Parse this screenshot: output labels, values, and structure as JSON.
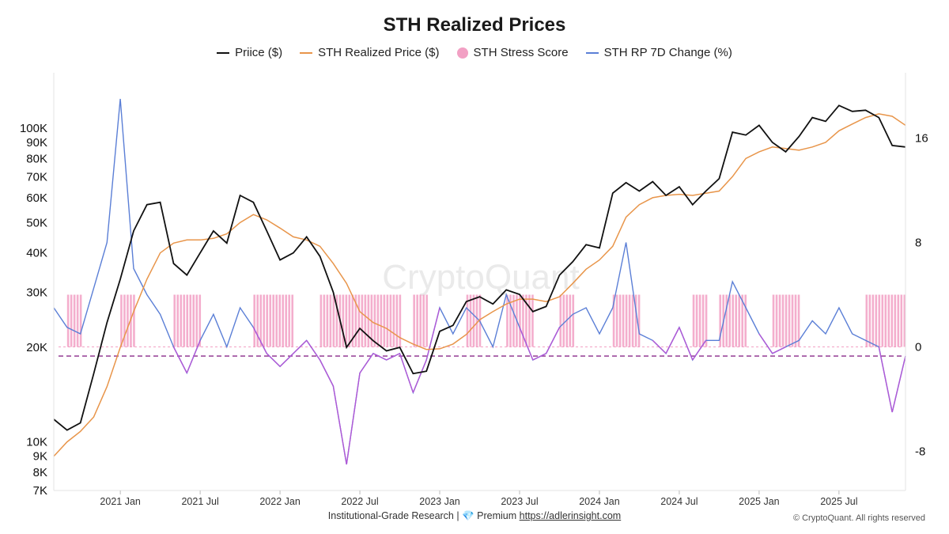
{
  "title": "STH Realized Prices",
  "legend": [
    {
      "label": "Priice ($)",
      "kind": "line",
      "color": "#111111"
    },
    {
      "label": "STH Realized Price ($)",
      "kind": "line",
      "color": "#e8954a"
    },
    {
      "label": "STH Stress Score",
      "kind": "dot",
      "color": "#f2a0c4"
    },
    {
      "label": "STH RP 7D Change (%)",
      "kind": "line",
      "color": "#5b7fd6"
    }
  ],
  "watermark": "CryptoQuant",
  "footer": {
    "text": "Institutional-Grade Research | ",
    "premium": "Premium",
    "link": "https://adlerinsight.com",
    "copyright": "© CryptoQuant. All rights reserved"
  },
  "chart_data": {
    "type": "line",
    "title": "STH Realized Prices",
    "x_ticks": [
      "2021 Jan",
      "2021 Jul",
      "2022 Jan",
      "2022 Jul",
      "2023 Jan",
      "2023 Jul",
      "2024 Jan",
      "2024 Jul",
      "2025 Jan",
      "2025 Jul"
    ],
    "x_tick_dates": [
      "2021-01",
      "2021-07",
      "2022-01",
      "2022-07",
      "2023-01",
      "2023-07",
      "2024-01",
      "2024-07",
      "2025-01",
      "2025-07"
    ],
    "x_range": [
      "2020-08",
      "2025-12"
    ],
    "left_axis": {
      "scale": "log",
      "ticks": [
        "7K",
        "8K",
        "9K",
        "10K",
        "20K",
        "30K",
        "40K",
        "50K",
        "60K",
        "70K",
        "80K",
        "90K",
        "100K"
      ],
      "tick_values": [
        7000,
        8000,
        9000,
        10000,
        20000,
        30000,
        40000,
        50000,
        60000,
        70000,
        80000,
        90000,
        100000
      ],
      "ylim": [
        7000,
        150000
      ]
    },
    "right_axis": {
      "scale": "linear",
      "ticks": [
        "-8",
        "0",
        "8",
        "16"
      ],
      "tick_values": [
        -8,
        0,
        8,
        16
      ],
      "ylim": [
        -11,
        21
      ]
    },
    "reference_line": {
      "axis": "right",
      "value": -0.7,
      "style": "dashed",
      "color": "#8a2a8a"
    },
    "series": [
      {
        "name": "Priice ($)",
        "axis": "left",
        "color": "#111111",
        "x": [
          "2020-08",
          "2020-09",
          "2020-10",
          "2020-11",
          "2020-12",
          "2021-01",
          "2021-02",
          "2021-03",
          "2021-04",
          "2021-05",
          "2021-06",
          "2021-07",
          "2021-08",
          "2021-09",
          "2021-10",
          "2021-11",
          "2021-12",
          "2022-01",
          "2022-02",
          "2022-03",
          "2022-04",
          "2022-05",
          "2022-06",
          "2022-07",
          "2022-08",
          "2022-09",
          "2022-10",
          "2022-11",
          "2022-12",
          "2023-01",
          "2023-02",
          "2023-03",
          "2023-04",
          "2023-05",
          "2023-06",
          "2023-07",
          "2023-08",
          "2023-09",
          "2023-10",
          "2023-11",
          "2023-12",
          "2024-01",
          "2024-02",
          "2024-03",
          "2024-04",
          "2024-05",
          "2024-06",
          "2024-07",
          "2024-08",
          "2024-09",
          "2024-10",
          "2024-11",
          "2024-12",
          "2025-01",
          "2025-02",
          "2025-03",
          "2025-04",
          "2025-05",
          "2025-06",
          "2025-07",
          "2025-08",
          "2025-09",
          "2025-10",
          "2025-11",
          "2025-12"
        ],
        "y": [
          11800,
          10900,
          11500,
          16500,
          24000,
          33000,
          47000,
          57000,
          58000,
          37000,
          34000,
          40000,
          47000,
          43000,
          61000,
          58000,
          47000,
          38000,
          40000,
          45000,
          39000,
          30000,
          20000,
          23000,
          21000,
          19500,
          20000,
          16500,
          16800,
          22500,
          23500,
          28000,
          29000,
          27500,
          30500,
          29500,
          26000,
          27000,
          34000,
          37500,
          42500,
          41500,
          62000,
          67000,
          63000,
          67500,
          61000,
          65000,
          57000,
          63000,
          69000,
          97000,
          95000,
          102000,
          90000,
          84000,
          94000,
          108000,
          105000,
          118000,
          113000,
          114000,
          108000,
          88000,
          87000
        ]
      },
      {
        "name": "STH Realized Price ($)",
        "axis": "left",
        "color": "#e8954a",
        "x": [
          "2020-08",
          "2020-09",
          "2020-10",
          "2020-11",
          "2020-12",
          "2021-01",
          "2021-02",
          "2021-03",
          "2021-04",
          "2021-05",
          "2021-06",
          "2021-07",
          "2021-08",
          "2021-09",
          "2021-10",
          "2021-11",
          "2021-12",
          "2022-01",
          "2022-02",
          "2022-03",
          "2022-04",
          "2022-05",
          "2022-06",
          "2022-07",
          "2022-08",
          "2022-09",
          "2022-10",
          "2022-11",
          "2022-12",
          "2023-01",
          "2023-02",
          "2023-03",
          "2023-04",
          "2023-05",
          "2023-06",
          "2023-07",
          "2023-08",
          "2023-09",
          "2023-10",
          "2023-11",
          "2023-12",
          "2024-01",
          "2024-02",
          "2024-03",
          "2024-04",
          "2024-05",
          "2024-06",
          "2024-07",
          "2024-08",
          "2024-09",
          "2024-10",
          "2024-11",
          "2024-12",
          "2025-01",
          "2025-02",
          "2025-03",
          "2025-04",
          "2025-05",
          "2025-06",
          "2025-07",
          "2025-08",
          "2025-09",
          "2025-10",
          "2025-11",
          "2025-12"
        ],
        "y": [
          9000,
          10000,
          10800,
          12000,
          15000,
          20000,
          26000,
          33000,
          40000,
          43000,
          44000,
          44000,
          44500,
          46000,
          50000,
          53000,
          51000,
          48000,
          45000,
          44000,
          42000,
          37000,
          32000,
          26000,
          24000,
          23000,
          21500,
          20500,
          19700,
          19800,
          20500,
          22000,
          24500,
          26000,
          27500,
          28500,
          28500,
          28000,
          29000,
          32000,
          35500,
          38000,
          42000,
          52000,
          57000,
          60000,
          61000,
          61500,
          61000,
          62000,
          63000,
          70000,
          80000,
          84000,
          87000,
          86000,
          85000,
          87000,
          90000,
          98000,
          103000,
          108000,
          111000,
          109000,
          102000
        ]
      },
      {
        "name": "STH RP 7D Change (%)",
        "axis": "right",
        "color": "#5b7fd6",
        "negative_color": "#b258d6",
        "x": [
          "2020-08",
          "2020-09",
          "2020-10",
          "2020-11",
          "2020-12",
          "2021-01",
          "2021-02",
          "2021-03",
          "2021-04",
          "2021-05",
          "2021-06",
          "2021-07",
          "2021-08",
          "2021-09",
          "2021-10",
          "2021-11",
          "2021-12",
          "2022-01",
          "2022-02",
          "2022-03",
          "2022-04",
          "2022-05",
          "2022-06",
          "2022-07",
          "2022-08",
          "2022-09",
          "2022-10",
          "2022-11",
          "2022-12",
          "2023-01",
          "2023-02",
          "2023-03",
          "2023-04",
          "2023-05",
          "2023-06",
          "2023-07",
          "2023-08",
          "2023-09",
          "2023-10",
          "2023-11",
          "2023-12",
          "2024-01",
          "2024-02",
          "2024-03",
          "2024-04",
          "2024-05",
          "2024-06",
          "2024-07",
          "2024-08",
          "2024-09",
          "2024-10",
          "2024-11",
          "2024-12",
          "2025-01",
          "2025-02",
          "2025-03",
          "2025-04",
          "2025-05",
          "2025-06",
          "2025-07",
          "2025-08",
          "2025-09",
          "2025-10",
          "2025-11",
          "2025-12"
        ],
        "y": [
          3,
          1.5,
          1,
          4.5,
          8,
          19,
          6,
          4,
          2.5,
          0,
          -2,
          0.5,
          2.5,
          0,
          3,
          1.5,
          -0.5,
          -1.5,
          -0.5,
          0.5,
          -1,
          -3,
          -9,
          -2,
          -0.5,
          -1,
          -0.5,
          -3.5,
          -1,
          3,
          1,
          3,
          2,
          0,
          4,
          1.5,
          -1,
          -0.5,
          1.5,
          2.5,
          3,
          1,
          3,
          8,
          1,
          0.5,
          -0.5,
          1.5,
          -1,
          0.5,
          0.5,
          5,
          3,
          1,
          -0.5,
          0,
          0.5,
          2,
          1,
          3,
          1,
          0.5,
          0,
          -5,
          -0.7
        ]
      }
    ],
    "stress_score": {
      "name": "STH Stress Score",
      "color": "#f2a0c4",
      "bars_right_axis_range": [
        0,
        4
      ],
      "active_periods": [
        [
          "2020-09",
          "2020-10"
        ],
        [
          "2021-01",
          "2021-02"
        ],
        [
          "2021-05",
          "2021-07"
        ],
        [
          "2021-11",
          "2022-02"
        ],
        [
          "2022-04",
          "2022-10"
        ],
        [
          "2022-11",
          "2022-12"
        ],
        [
          "2023-03",
          "2023-04"
        ],
        [
          "2023-06",
          "2023-08"
        ],
        [
          "2023-10",
          "2023-11"
        ],
        [
          "2024-02",
          "2024-04"
        ],
        [
          "2024-08",
          "2024-09"
        ],
        [
          "2024-10",
          "2024-12"
        ],
        [
          "2025-02",
          "2025-04"
        ],
        [
          "2025-09",
          "2025-12"
        ]
      ]
    }
  }
}
